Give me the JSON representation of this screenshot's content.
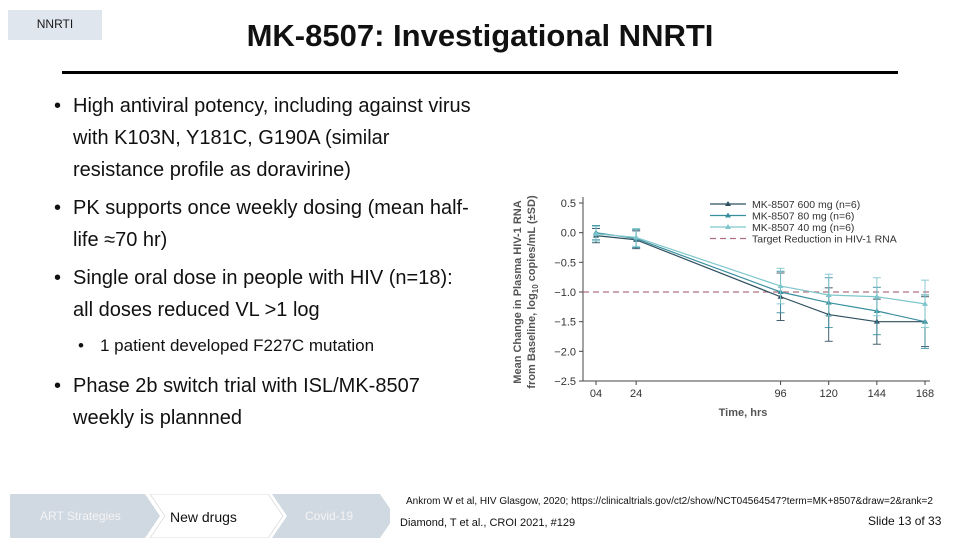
{
  "header": {
    "tag": "NNRTI",
    "title": "MK-8507:  Investigational NNRTI"
  },
  "bullets": [
    "High antiviral potency, including against virus with K103N, Y181C, G190A (similar resistance profile as doravirine)",
    "PK supports once weekly dosing (mean half-life ≈70 hr)",
    "Single oral dose in people with HIV (n=18): all doses reduced VL  >1 log",
    "Phase 2b switch trial with ISL/MK-8507 weekly is plannned"
  ],
  "sub_bullet": "1 patient developed F227C mutation",
  "chart_data": {
    "type": "line",
    "xlabel": "Time, hrs",
    "ylabel_line1": "Mean Change in Plasma HIV-1 RNA",
    "ylabel_line2": "from Baseline, log10 copies/mL (±SD)",
    "x": [
      4,
      24,
      96,
      120,
      144,
      168
    ],
    "x_tick_labels": [
      "04",
      "24",
      "96",
      "120",
      "144",
      "168"
    ],
    "ylim": [
      -2.5,
      0.5
    ],
    "y_ticks": [
      0.5,
      0.0,
      -0.5,
      -1.0,
      -1.5,
      -2.0,
      -2.5
    ],
    "y_tick_labels": [
      "0.5",
      "0.0",
      "−0.5",
      "−1.0",
      "−1.5",
      "−2.0",
      "−2.5"
    ],
    "series": [
      {
        "name": "MK-8507 600 mg (n=6)",
        "color": "#2f4f5f",
        "values": [
          -0.05,
          -0.12,
          -1.08,
          -1.38,
          -1.5,
          -1.5
        ],
        "sd": [
          0.12,
          0.15,
          0.4,
          0.45,
          0.38,
          0.42
        ]
      },
      {
        "name": "MK-8507 80 mg (n=6)",
        "color": "#3a8f9f",
        "values": [
          0.0,
          -0.1,
          -1.0,
          -1.18,
          -1.32,
          -1.5
        ],
        "sd": [
          0.12,
          0.15,
          0.35,
          0.42,
          0.4,
          0.45
        ]
      },
      {
        "name": "MK-8507 40 mg (n=6)",
        "color": "#7fc6cc",
        "values": [
          -0.02,
          -0.08,
          -0.9,
          -1.05,
          -1.08,
          -1.2
        ],
        "sd": [
          0.12,
          0.15,
          0.3,
          0.35,
          0.32,
          0.4
        ]
      }
    ],
    "target": {
      "name": "Target Reduction in HIV-1 RNA",
      "value": -1.0,
      "color": "#b07080"
    }
  },
  "footer": {
    "nav": [
      "ART Strategies",
      "New drugs",
      "Covid-19"
    ],
    "ref1": "Ankrom W et al, HIV Glasgow, 2020; https://clinicaltrials.gov/ct2/show/NCT04564547?term=MK+8507&draw=2&rank=2",
    "ref2": "Diamond, T et al., CROI 2021, #129",
    "slide": "Slide 13 of 33"
  }
}
